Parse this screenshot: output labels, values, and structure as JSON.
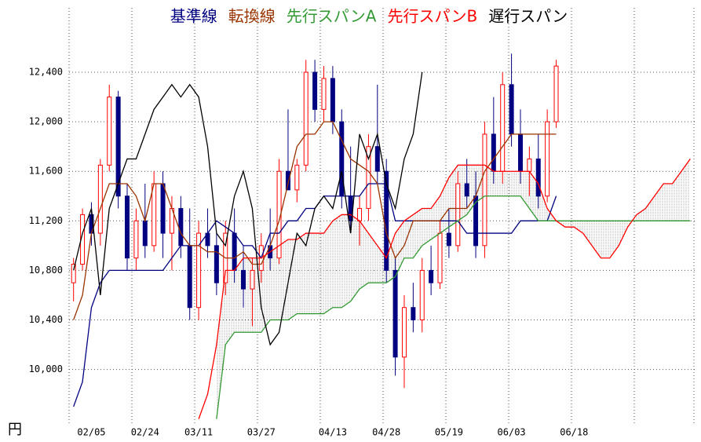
{
  "chart_data": {
    "type": "candlestick",
    "y_unit": "円",
    "ylim": [
      9560,
      12920
    ],
    "yticks": [
      {
        "value": 10000,
        "label": "10,000"
      },
      {
        "value": 10400,
        "label": "10,400"
      },
      {
        "value": 10800,
        "label": "10,800"
      },
      {
        "value": 11200,
        "label": "11,200"
      },
      {
        "value": 11600,
        "label": "11,600"
      },
      {
        "value": 12000,
        "label": "12,000"
      },
      {
        "value": 12400,
        "label": "12,400"
      }
    ],
    "grid": true,
    "categories": [
      null,
      null,
      "02/05",
      null,
      null,
      null,
      null,
      null,
      "02/24",
      null,
      null,
      null,
      null,
      null,
      "03/11",
      null,
      null,
      null,
      null,
      null,
      null,
      "03/27",
      null,
      null,
      null,
      null,
      null,
      null,
      null,
      "04/13",
      null,
      null,
      null,
      null,
      null,
      "04/28",
      null,
      null,
      null,
      null,
      null,
      null,
      "05/19",
      null,
      null,
      null,
      null,
      null,
      null,
      "06/03",
      null,
      null,
      null,
      null,
      null,
      null,
      "06/18",
      null,
      null,
      null,
      null,
      null,
      null,
      null,
      null,
      null,
      null,
      null,
      null,
      null
    ],
    "ohlc": {
      "up_color": "#ff0000",
      "down_color": "#000080",
      "open": [
        10700,
        10850,
        11250,
        11100,
        11650,
        12200,
        11400,
        10900,
        11200,
        11000,
        11500,
        11100,
        11300,
        11000,
        10500,
        11100,
        11000,
        10700,
        11100,
        10800,
        10650,
        10800,
        11000,
        10900,
        11600,
        11450,
        11650,
        12400,
        12100,
        12350,
        12000,
        11400,
        11200,
        11300,
        11800,
        11600,
        10800,
        10100,
        10500,
        10400,
        10800,
        10700,
        11100,
        11000,
        11500,
        11400,
        11000,
        11900,
        11600,
        12300,
        11900,
        11600,
        11700,
        11400,
        12000
      ],
      "high": [
        10900,
        11300,
        11350,
        11700,
        12300,
        12250,
        11500,
        11300,
        11500,
        11600,
        11600,
        11400,
        11400,
        11300,
        11200,
        11300,
        11100,
        11200,
        11300,
        11000,
        10900,
        11100,
        11300,
        11700,
        12100,
        11700,
        12500,
        12500,
        12450,
        12450,
        12100,
        11800,
        11400,
        11900,
        12300,
        11700,
        10900,
        10600,
        10700,
        10900,
        11000,
        11200,
        11300,
        11600,
        11700,
        11600,
        12000,
        12200,
        12400,
        12550,
        12100,
        11800,
        11900,
        12100,
        12500
      ],
      "low": [
        10550,
        10800,
        11000,
        11000,
        11600,
        11300,
        10800,
        10800,
        10900,
        10950,
        10900,
        10800,
        10900,
        10400,
        10400,
        10900,
        10600,
        10600,
        10700,
        10500,
        10350,
        10700,
        10800,
        10850,
        11450,
        11350,
        11600,
        12000,
        12000,
        11900,
        11300,
        11100,
        11000,
        11200,
        11500,
        10700,
        9950,
        9850,
        10300,
        10300,
        10600,
        10650,
        10900,
        10950,
        11300,
        10900,
        10900,
        11500,
        11500,
        11800,
        11500,
        11400,
        11300,
        11350,
        11950
      ],
      "close": [
        10850,
        11250,
        11100,
        11650,
        12200,
        11400,
        10900,
        11200,
        11000,
        11500,
        11100,
        11300,
        11000,
        10500,
        11100,
        11000,
        10700,
        11100,
        10800,
        10650,
        10800,
        11000,
        10900,
        11600,
        11450,
        11650,
        12400,
        12100,
        12350,
        12000,
        11400,
        11200,
        11300,
        11800,
        11600,
        10800,
        10100,
        10500,
        10400,
        10800,
        10700,
        11100,
        11000,
        11500,
        11400,
        11000,
        11900,
        11600,
        12300,
        11900,
        11600,
        11700,
        11400,
        12000,
        12450
      ]
    },
    "series": [
      {
        "name": "基準線",
        "color": "#000080",
        "values": [
          9700,
          9900,
          10500,
          10700,
          10800,
          10800,
          10800,
          10800,
          10800,
          10800,
          10800,
          10900,
          11000,
          11000,
          11000,
          11100,
          11200,
          11150,
          11100,
          11000,
          11000,
          10900,
          11100,
          11100,
          11200,
          11200,
          11300,
          11300,
          11400,
          11400,
          11400,
          11400,
          11400,
          11500,
          11500,
          11500,
          11200,
          11200,
          11200,
          11200,
          11200,
          11200,
          11200,
          11200,
          11100,
          11100,
          11100,
          11100,
          11100,
          11100,
          11200,
          11200,
          11200,
          11200,
          11400,
          null,
          null,
          null,
          null,
          null,
          null,
          null,
          null,
          null,
          null,
          null,
          null,
          null,
          null,
          null
        ]
      },
      {
        "name": "転換線",
        "color": "#993300",
        "values": [
          10400,
          10600,
          11100,
          11300,
          11500,
          11500,
          11500,
          11400,
          11200,
          11500,
          11500,
          11300,
          11100,
          11000,
          11000,
          10950,
          10950,
          10900,
          10900,
          10950,
          10850,
          10850,
          11000,
          11200,
          11500,
          11800,
          11900,
          11900,
          12000,
          12000,
          11850,
          11700,
          11650,
          11600,
          11500,
          11100,
          10900,
          11000,
          11200,
          11200,
          11200,
          11200,
          11300,
          11300,
          11300,
          11400,
          11600,
          11700,
          11800,
          11900,
          11900,
          11900,
          11900,
          11900,
          11900,
          null,
          null,
          null,
          null,
          null,
          null,
          null,
          null,
          null,
          null,
          null,
          null,
          null,
          null,
          null
        ]
      },
      {
        "name": "先行スパンA",
        "color": "#339933",
        "values": [
          null,
          null,
          null,
          null,
          null,
          null,
          null,
          null,
          null,
          null,
          null,
          null,
          null,
          null,
          null,
          null,
          9600,
          10200,
          10300,
          10300,
          10300,
          10300,
          10400,
          10400,
          10400,
          10450,
          10450,
          10450,
          10450,
          10500,
          10500,
          10550,
          10650,
          10700,
          10700,
          10700,
          10750,
          10900,
          10900,
          11000,
          11050,
          11100,
          11150,
          11200,
          11250,
          11350,
          11400,
          11400,
          11400,
          11400,
          11400,
          11300,
          11200,
          11200,
          11200,
          11200,
          11200,
          11200,
          11200,
          11200,
          11200,
          11200,
          11200,
          11200,
          11200,
          11200,
          11200,
          11200,
          11200,
          11200
        ]
      },
      {
        "name": "先行スパンB",
        "color": "#ff0000",
        "values": [
          null,
          null,
          null,
          null,
          null,
          null,
          null,
          null,
          null,
          null,
          null,
          null,
          null,
          null,
          9600,
          9800,
          10200,
          10800,
          10800,
          10900,
          10900,
          10900,
          10950,
          11000,
          11050,
          11050,
          11100,
          11100,
          11100,
          11200,
          11250,
          11250,
          11200,
          11100,
          11000,
          10900,
          11100,
          11200,
          11250,
          11300,
          11300,
          11400,
          11550,
          11650,
          11650,
          11650,
          11650,
          11600,
          11600,
          11600,
          11600,
          11600,
          11500,
          11300,
          11200,
          11150,
          11150,
          11100,
          11000,
          10900,
          10900,
          11000,
          11150,
          11250,
          11300,
          11400,
          11500,
          11500,
          11600,
          11700
        ]
      },
      {
        "name": "遅行スパン",
        "color": "#000000",
        "values": [
          10800,
          11100,
          11300,
          10600,
          11300,
          11500,
          11700,
          11700,
          11900,
          12100,
          12200,
          12300,
          12200,
          12300,
          12200,
          11800,
          11100,
          11000,
          11400,
          11600,
          11300,
          10500,
          10200,
          10300,
          10700,
          11100,
          11000,
          11300,
          11400,
          11300,
          11600,
          11100,
          11900,
          11700,
          11900,
          11500,
          11300,
          11700,
          11900,
          12400,
          null,
          null,
          null,
          null,
          null,
          null,
          null,
          null,
          null,
          null,
          null,
          null,
          null,
          null,
          null,
          null,
          null,
          null,
          null,
          null,
          null,
          null,
          null,
          null,
          null,
          null,
          null,
          null,
          null,
          null
        ]
      }
    ]
  }
}
